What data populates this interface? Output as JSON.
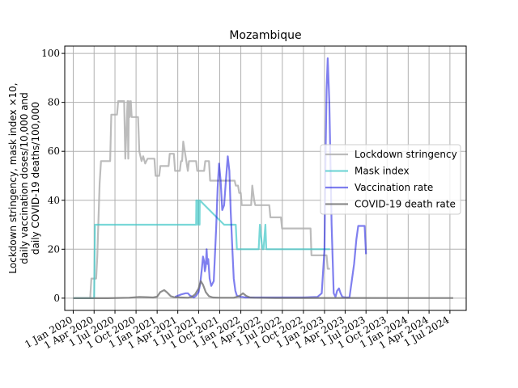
{
  "chart_data": {
    "type": "line",
    "title": "Mozambique",
    "ylabel_lines": [
      "Lockdown stringency, mask index ×10,",
      "daily vaccination doses/10,000 and",
      "daily COVID-19 deaths/100,000"
    ],
    "xlabel": "",
    "ylim": [
      -5,
      103
    ],
    "xlim": [
      "2019-11-25",
      "2024-09-10"
    ],
    "grid": true,
    "legend_position": "center-right",
    "y_ticks": [
      0,
      20,
      40,
      60,
      80,
      100
    ],
    "x_ticks": [
      {
        "date": "2020-01-01",
        "label": "1 Jan 2020"
      },
      {
        "date": "2020-04-01",
        "label": "1 Apr 2020"
      },
      {
        "date": "2020-07-01",
        "label": "1 Jul 2020"
      },
      {
        "date": "2020-10-01",
        "label": "1 Oct 2020"
      },
      {
        "date": "2021-01-01",
        "label": "1 Jan 2021"
      },
      {
        "date": "2021-04-01",
        "label": "1 Apr 2021"
      },
      {
        "date": "2021-07-01",
        "label": "1 Jul 2021"
      },
      {
        "date": "2021-10-01",
        "label": "1 Oct 2021"
      },
      {
        "date": "2022-01-01",
        "label": "1 Jan 2022"
      },
      {
        "date": "2022-04-01",
        "label": "1 Apr 2022"
      },
      {
        "date": "2022-07-01",
        "label": "1 Jul 2022"
      },
      {
        "date": "2022-10-01",
        "label": "1 Oct 2022"
      },
      {
        "date": "2023-01-01",
        "label": "1 Jan 2023"
      },
      {
        "date": "2023-04-01",
        "label": "1 Apr 2023"
      },
      {
        "date": "2023-07-01",
        "label": "1 Jul 2023"
      },
      {
        "date": "2023-10-01",
        "label": "1 Oct 2023"
      },
      {
        "date": "2024-01-01",
        "label": "1 Jan 2024"
      },
      {
        "date": "2024-04-01",
        "label": "1 Apr 2024"
      },
      {
        "date": "2024-07-01",
        "label": "1 Jul 2024"
      }
    ],
    "series": [
      {
        "name": "Lockdown stringency",
        "color": "#b0b0b0",
        "x": [
          "2020-01-01",
          "2020-03-15",
          "2020-03-20",
          "2020-04-10",
          "2020-04-15",
          "2020-04-25",
          "2020-05-01",
          "2020-06-10",
          "2020-06-15",
          "2020-07-10",
          "2020-07-15",
          "2020-08-10",
          "2020-08-15",
          "2020-08-25",
          "2020-08-28",
          "2020-08-31",
          "2020-09-03",
          "2020-09-08",
          "2020-09-12",
          "2020-10-10",
          "2020-10-15",
          "2020-10-25",
          "2020-11-01",
          "2020-11-10",
          "2020-11-20",
          "2020-12-20",
          "2020-12-25",
          "2021-01-10",
          "2021-01-15",
          "2021-02-20",
          "2021-02-25",
          "2021-03-15",
          "2021-03-20",
          "2021-04-10",
          "2021-04-15",
          "2021-04-20",
          "2021-04-25",
          "2021-05-15",
          "2021-05-20",
          "2021-06-20",
          "2021-06-25",
          "2021-07-25",
          "2021-07-30",
          "2021-08-15",
          "2021-08-20",
          "2021-12-05",
          "2021-12-10",
          "2021-12-20",
          "2021-12-25",
          "2022-01-01",
          "2022-01-05",
          "2022-02-15",
          "2022-02-20",
          "2022-02-28",
          "2022-03-05",
          "2022-05-05",
          "2022-05-10",
          "2022-06-25",
          "2022-06-30",
          "2022-11-01",
          "2022-11-05",
          "2023-01-10",
          "2023-01-15",
          "2023-01-20",
          "2023-01-25"
        ],
        "y": [
          0,
          0,
          8,
          8,
          17,
          47,
          56,
          56,
          75,
          75,
          80.5,
          80.5,
          57,
          80.5,
          57,
          80.5,
          74,
          80.5,
          74,
          74,
          60,
          56,
          58,
          55,
          57,
          57,
          50,
          50,
          54,
          54,
          59,
          59,
          52,
          52,
          56,
          56,
          64,
          52,
          56,
          56,
          52,
          52,
          56,
          56,
          48,
          48,
          46,
          46,
          43,
          43,
          38,
          38,
          46,
          40,
          38,
          38,
          33,
          33,
          28.5,
          28.5,
          17.5,
          17.5,
          12,
          12,
          12
        ]
      },
      {
        "name": "Mask index",
        "color": "#40c8c8",
        "x": [
          "2020-01-01",
          "2020-04-01",
          "2020-04-05",
          "2021-06-20",
          "2021-06-21",
          "2021-06-27",
          "2021-06-28",
          "2021-07-05",
          "2021-07-06",
          "2021-10-20",
          "2021-10-21",
          "2021-12-10",
          "2021-12-15",
          "2022-03-20",
          "2022-03-25",
          "2022-04-05",
          "2022-04-10",
          "2022-04-18",
          "2022-04-22",
          "2023-01-20",
          "2023-01-25"
        ],
        "y": [
          0,
          0,
          30,
          30,
          40,
          30,
          40,
          30,
          40,
          30,
          30,
          30,
          20,
          20,
          30,
          20,
          20,
          30,
          20,
          20,
          20
        ]
      },
      {
        "name": "Vaccination rate",
        "color": "#0000e0",
        "x": [
          "2021-03-20",
          "2021-04-15",
          "2021-05-05",
          "2021-05-15",
          "2021-05-25",
          "2021-06-10",
          "2021-06-20",
          "2021-07-01",
          "2021-07-08",
          "2021-07-15",
          "2021-07-20",
          "2021-07-25",
          "2021-07-28",
          "2021-08-01",
          "2021-08-05",
          "2021-08-08",
          "2021-08-12",
          "2021-08-18",
          "2021-08-25",
          "2021-09-05",
          "2021-09-15",
          "2021-09-22",
          "2021-09-28",
          "2021-10-05",
          "2021-10-12",
          "2021-10-20",
          "2021-10-28",
          "2021-11-05",
          "2021-11-12",
          "2021-11-18",
          "2021-11-25",
          "2021-12-01",
          "2021-12-08",
          "2021-12-15",
          "2021-12-22",
          "2021-12-30",
          "2022-01-08",
          "2022-01-20",
          "2022-02-05",
          "2022-02-20",
          "2022-03-05",
          "2022-04-01",
          "2022-07-01",
          "2022-10-01",
          "2022-12-01",
          "2022-12-20",
          "2023-01-01",
          "2023-01-05",
          "2023-01-10",
          "2023-01-15",
          "2023-01-22",
          "2023-02-01",
          "2023-02-10",
          "2023-02-18",
          "2023-02-25",
          "2023-03-05",
          "2023-03-12",
          "2023-03-20",
          "2023-04-01",
          "2023-04-20",
          "2023-05-10",
          "2023-05-20",
          "2023-05-28",
          "2023-06-05",
          "2023-06-15",
          "2023-06-25",
          "2023-07-01"
        ],
        "y": [
          0.5,
          1.5,
          2,
          2,
          1,
          0.3,
          1,
          2.5,
          6,
          12,
          17,
          15,
          11,
          13,
          20,
          14,
          16,
          8,
          5,
          7,
          28,
          45,
          55,
          48,
          36,
          38,
          48,
          58,
          52,
          35,
          20,
          8,
          3,
          1,
          0.8,
          0.5,
          0.5,
          0.3,
          0.3,
          0.3,
          0.3,
          0.3,
          0.3,
          0.3,
          0.5,
          2,
          20,
          55,
          85,
          98,
          80,
          30,
          2,
          0.5,
          3,
          4,
          2,
          0.5,
          0.3,
          0.3,
          14,
          24,
          29.5,
          29.5,
          29.5,
          29.5,
          18
        ]
      },
      {
        "name": "COVID-19 death rate",
        "color": "#707070",
        "x": [
          "2020-01-01",
          "2020-06-01",
          "2020-09-01",
          "2020-10-15",
          "2020-11-15",
          "2020-12-15",
          "2021-01-01",
          "2021-01-15",
          "2021-02-01",
          "2021-02-15",
          "2021-03-01",
          "2021-03-15",
          "2021-04-15",
          "2021-05-15",
          "2021-06-01",
          "2021-06-15",
          "2021-07-01",
          "2021-07-10",
          "2021-07-20",
          "2021-08-01",
          "2021-08-15",
          "2021-09-01",
          "2021-10-01",
          "2021-12-01",
          "2021-12-25",
          "2022-01-10",
          "2022-01-25",
          "2022-02-10",
          "2022-03-01",
          "2022-06-01",
          "2022-12-01",
          "2023-06-01",
          "2024-01-01",
          "2024-07-01",
          "2024-07-15"
        ],
        "y": [
          0,
          0,
          0.2,
          0.5,
          0.4,
          0.3,
          0.6,
          2.5,
          3.3,
          2.2,
          0.8,
          0.4,
          0.3,
          0.2,
          0.5,
          1.5,
          4,
          7,
          5.5,
          2.5,
          0.8,
          0.3,
          0.2,
          0.2,
          0.8,
          2,
          0.9,
          0.3,
          0.2,
          0.1,
          0.1,
          0.1,
          0.05,
          0.05,
          0.05
        ]
      }
    ]
  }
}
